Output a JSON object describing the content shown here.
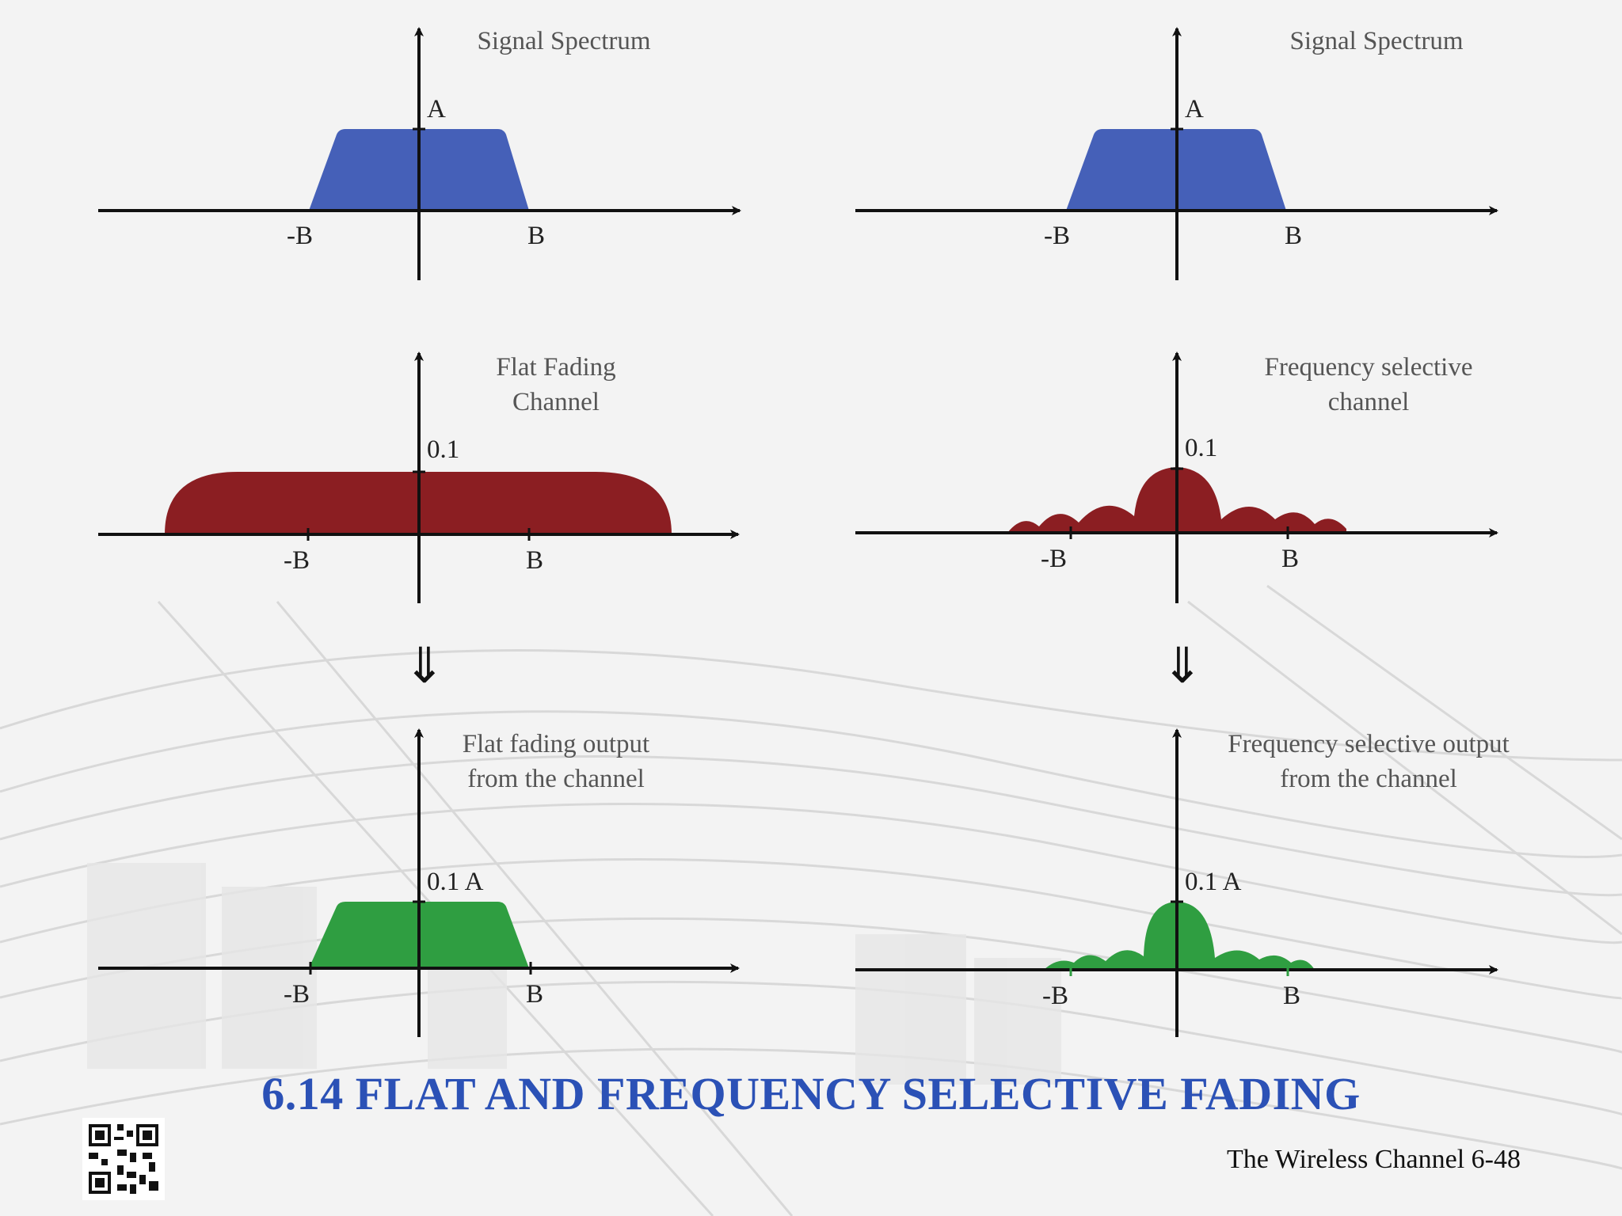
{
  "slide": {
    "title": "6.14 FLAT AND FREQUENCY SELECTIVE FADING",
    "footer": "The Wireless Channel 6-48"
  },
  "panels": {
    "left_top": {
      "title_lines": [
        "Signal Spectrum"
      ],
      "level_label": "A",
      "neg_label": "-B",
      "pos_label": "B"
    },
    "right_top": {
      "title_lines": [
        "Signal Spectrum"
      ],
      "level_label": "A",
      "neg_label": "-B",
      "pos_label": "B"
    },
    "left_mid": {
      "title_lines": [
        "Flat Fading",
        "Channel"
      ],
      "level_label": "0.1",
      "neg_label": "-B",
      "pos_label": "B"
    },
    "right_mid": {
      "title_lines": [
        "Frequency selective",
        "channel"
      ],
      "level_label": "0.1",
      "neg_label": "-B",
      "pos_label": "B"
    },
    "left_bot": {
      "title_lines": [
        "Flat fading output",
        "from the channel"
      ],
      "level_label": "0.1 A",
      "neg_label": "-B",
      "pos_label": "B"
    },
    "right_bot": {
      "title_lines": [
        "Frequency selective output",
        "from the channel"
      ],
      "level_label": "0.1 A",
      "neg_label": "-B",
      "pos_label": "B"
    }
  },
  "flow_arrow": "⇓",
  "colors": {
    "signal": "#4560b8",
    "channel": "#8b1e22",
    "output": "#2f9e41",
    "title": "#2b51b6",
    "axis": "#111111"
  }
}
